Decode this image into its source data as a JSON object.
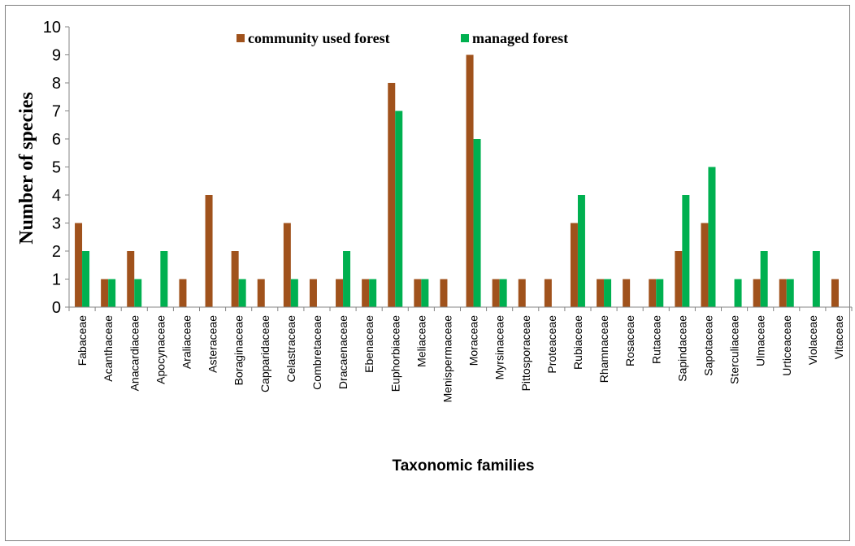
{
  "chart_data": {
    "type": "bar",
    "title": "",
    "xlabel": "Taxonomic families",
    "ylabel": "Number of species",
    "ylim": [
      0,
      10
    ],
    "yticks": [
      "0",
      "1",
      "2",
      "3",
      "4",
      "5",
      "6",
      "7",
      "8",
      "9",
      "10"
    ],
    "grid": false,
    "legend_position": "top-center",
    "categories": [
      "Fabaceae",
      "Acanthaceae",
      "Anacardiaceae",
      "Apocynaceae",
      "Araliaceae",
      "Asteraceae",
      "Boraginaceae",
      "Capparidaceae",
      "Celastraceae",
      "Combretaceae",
      "Dracaenaceae",
      "Ebenaceae",
      "Euphorbiaceae",
      "Meliaceae",
      "Menispermaceae",
      "Moraceae",
      "Myrsinaceae",
      "Pittosporaceae",
      "Proteaceae",
      "Rubiaceae",
      "Rhamnaceae",
      "Rosaceae",
      "Rutaceae",
      "Sapindaceae",
      "Sapotaceae",
      "Sterculiaceae",
      "Ulmaceae",
      "Urticeaceae",
      "Violaceae",
      "Vitaceae"
    ],
    "series": [
      {
        "name": "community used forest",
        "color": "#A0521C",
        "values": [
          3,
          1,
          2,
          0,
          1,
          4,
          2,
          1,
          3,
          1,
          1,
          1,
          8,
          1,
          1,
          9,
          1,
          1,
          1,
          3,
          1,
          1,
          1,
          2,
          3,
          0,
          1,
          1,
          0,
          1
        ]
      },
      {
        "name": "managed forest",
        "color": "#00B050",
        "values": [
          2,
          1,
          1,
          2,
          0,
          0,
          1,
          0,
          1,
          0,
          2,
          1,
          7,
          1,
          0,
          6,
          1,
          0,
          0,
          4,
          1,
          0,
          1,
          4,
          5,
          1,
          2,
          1,
          2,
          0
        ]
      }
    ]
  }
}
